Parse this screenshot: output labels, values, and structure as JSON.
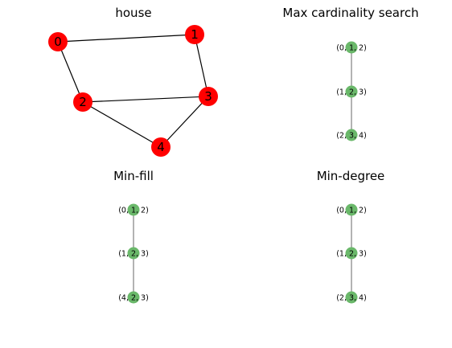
{
  "colors": {
    "house_node": "#ff0000",
    "tree_node": "#6ab86a",
    "house_edge": "#000000",
    "tree_edge": "#808080"
  },
  "panels": [
    {
      "title": "house",
      "kind": "graph",
      "nodes": [
        "0",
        "1",
        "2",
        "3",
        "4"
      ],
      "edges": [
        [
          "0",
          "1"
        ],
        [
          "0",
          "2"
        ],
        [
          "1",
          "3"
        ],
        [
          "2",
          "3"
        ],
        [
          "2",
          "4"
        ],
        [
          "3",
          "4"
        ]
      ]
    },
    {
      "title": "Max cardinality search",
      "kind": "junction-tree",
      "nodes": [
        "(0, 1, 2)",
        "(1, 2, 3)",
        "(2, 3, 4)"
      ],
      "edges": [
        [
          "(0, 1, 2)",
          "(1, 2, 3)"
        ],
        [
          "(1, 2, 3)",
          "(2, 3, 4)"
        ]
      ]
    },
    {
      "title": "Min-fill",
      "kind": "junction-tree",
      "nodes": [
        "(0, 1, 2)",
        "(1, 2, 3)",
        "(4, 2, 3)"
      ],
      "edges": [
        [
          "(0, 1, 2)",
          "(1, 2, 3)"
        ],
        [
          "(1, 2, 3)",
          "(4, 2, 3)"
        ]
      ]
    },
    {
      "title": "Min-degree",
      "kind": "junction-tree",
      "nodes": [
        "(0, 1, 2)",
        "(1, 2, 3)",
        "(2, 3, 4)"
      ],
      "edges": [
        [
          "(0, 1, 2)",
          "(1, 2, 3)"
        ],
        [
          "(1, 2, 3)",
          "(2, 3, 4)"
        ]
      ]
    }
  ]
}
